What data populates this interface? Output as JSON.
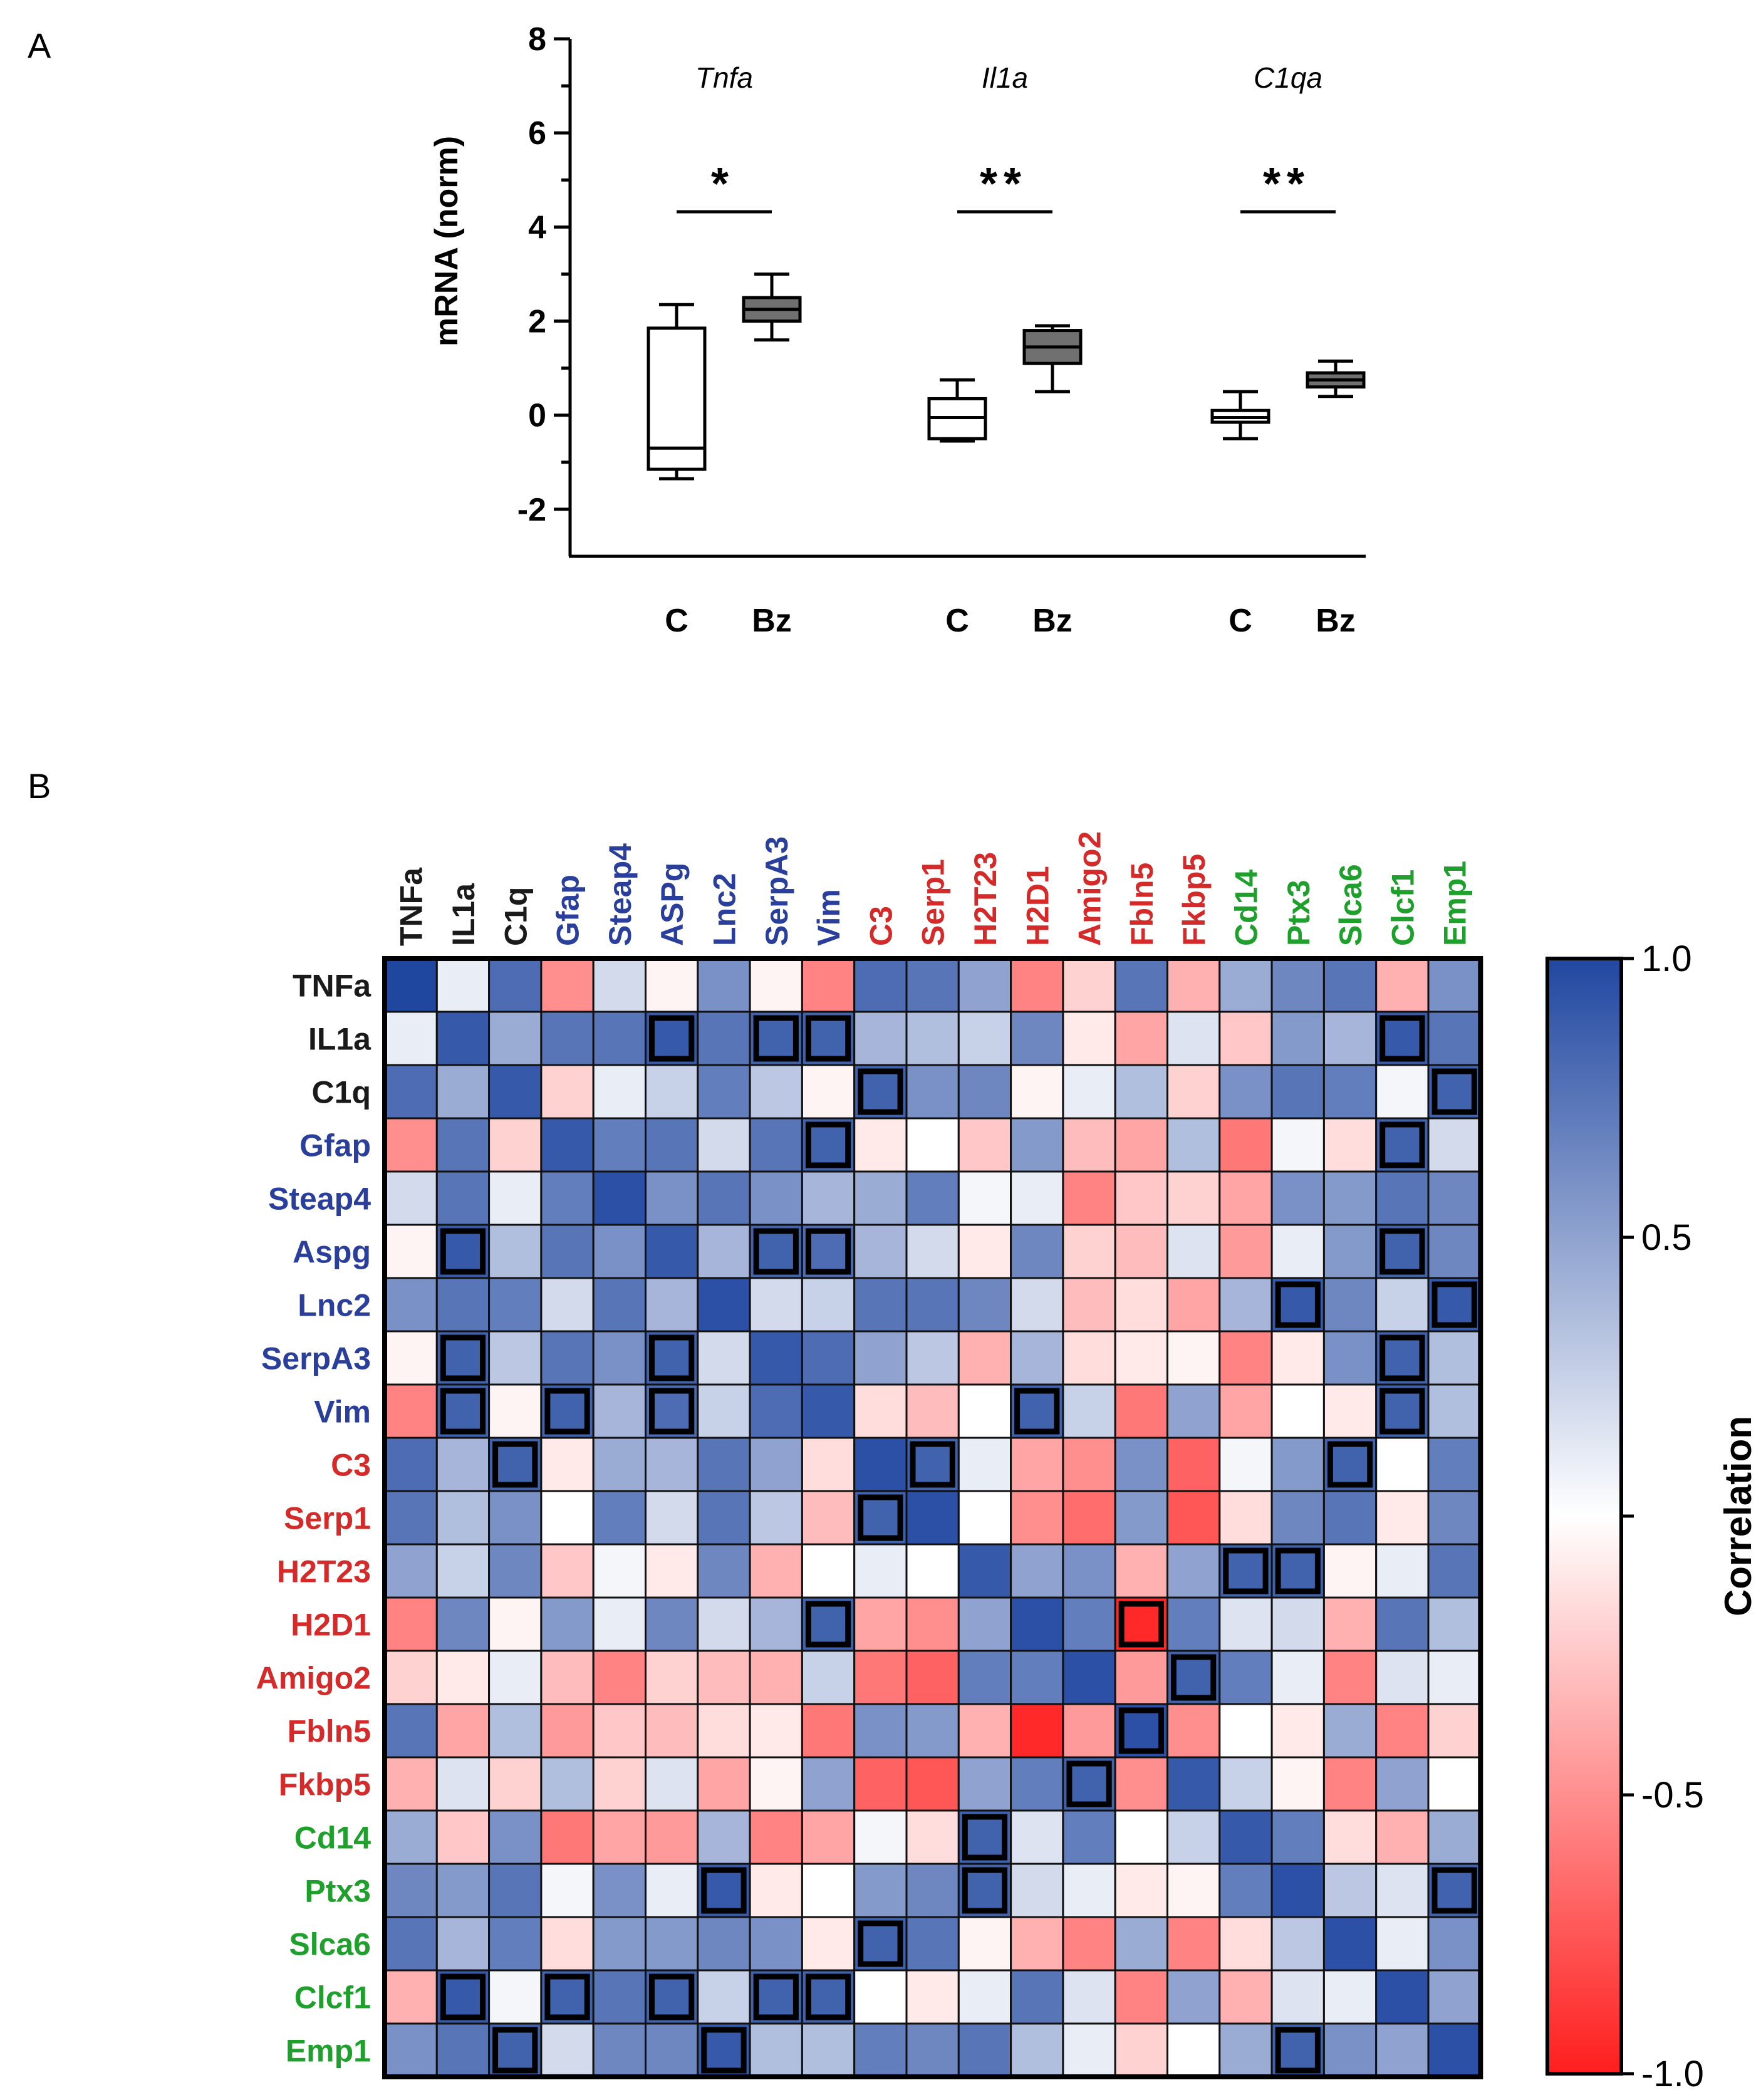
{
  "panels": {
    "a_letter": "A",
    "b_letter": "B"
  },
  "chart_data": [
    {
      "type": "box",
      "panel": "A",
      "ylabel": "mRNA (norm)",
      "ylim": [
        -3,
        8
      ],
      "yticks": [
        -2,
        0,
        2,
        4,
        6,
        8
      ],
      "groups": [
        {
          "gene": "Tnfa",
          "significance": "*",
          "boxes": [
            {
              "label": "C",
              "fill": "#ffffff",
              "min": -1.35,
              "q1": -1.15,
              "median": -0.7,
              "q3": 1.85,
              "max": 2.35
            },
            {
              "label": "Bz",
              "fill": "#707070",
              "min": 1.6,
              "q1": 2.0,
              "median": 2.25,
              "q3": 2.5,
              "max": 3.0
            }
          ]
        },
        {
          "gene": "Il1a",
          "significance": "**",
          "boxes": [
            {
              "label": "C",
              "fill": "#ffffff",
              "min": -0.55,
              "q1": -0.5,
              "median": -0.05,
              "q3": 0.35,
              "max": 0.75
            },
            {
              "label": "Bz",
              "fill": "#707070",
              "min": 0.5,
              "q1": 1.1,
              "median": 1.45,
              "q3": 1.8,
              "max": 1.9
            }
          ]
        },
        {
          "gene": "C1qa",
          "significance": "**",
          "boxes": [
            {
              "label": "C",
              "fill": "#ffffff",
              "min": -0.5,
              "q1": -0.15,
              "median": -0.05,
              "q3": 0.1,
              "max": 0.5
            },
            {
              "label": "Bz",
              "fill": "#707070",
              "min": 0.4,
              "q1": 0.6,
              "median": 0.75,
              "q3": 0.9,
              "max": 1.15
            }
          ]
        }
      ]
    },
    {
      "type": "heatmap",
      "panel": "B",
      "colorbar_label": "Correlation",
      "colorbar_ticks": [
        {
          "value": 1.0,
          "label": "1.0"
        },
        {
          "value": 0.5,
          "label": "0.5"
        },
        {
          "value": 0.0,
          "label": ""
        },
        {
          "value": -0.5,
          "label": "-0.5"
        },
        {
          "value": -1.0,
          "label": "-1.0"
        }
      ],
      "colorscale": {
        "negative": "#ff1e1e",
        "zero": "#ffffff",
        "positive": "#2047a0"
      },
      "group_colors": {
        "black": "#1a1a1a",
        "blue": "#2a3f9b",
        "red": "#d42a2a",
        "green": "#1fa02c"
      },
      "col_labels": [
        {
          "text": "TNFa",
          "group": "black"
        },
        {
          "text": "IL1a",
          "group": "black"
        },
        {
          "text": "C1q",
          "group": "black"
        },
        {
          "text": "Gfap",
          "group": "blue"
        },
        {
          "text": "Steap4",
          "group": "blue"
        },
        {
          "text": "ASPg",
          "group": "blue"
        },
        {
          "text": "Lnc2",
          "group": "blue"
        },
        {
          "text": "SerpA3",
          "group": "blue"
        },
        {
          "text": "Vim",
          "group": "blue"
        },
        {
          "text": "C3",
          "group": "red"
        },
        {
          "text": "Serp1",
          "group": "red"
        },
        {
          "text": "H2T23",
          "group": "red"
        },
        {
          "text": "H2D1",
          "group": "red"
        },
        {
          "text": "Amigo2",
          "group": "red"
        },
        {
          "text": "Fbln5",
          "group": "red"
        },
        {
          "text": "Fkbp5",
          "group": "red"
        },
        {
          "text": "Cd14",
          "group": "green"
        },
        {
          "text": "Ptx3",
          "group": "green"
        },
        {
          "text": "Slca6",
          "group": "green"
        },
        {
          "text": "Clcf1",
          "group": "green"
        },
        {
          "text": "Emp1",
          "group": "green"
        }
      ],
      "row_labels": [
        {
          "text": "TNFa",
          "group": "black"
        },
        {
          "text": "IL1a",
          "group": "black"
        },
        {
          "text": "C1q",
          "group": "black"
        },
        {
          "text": "Gfap",
          "group": "blue"
        },
        {
          "text": "Steap4",
          "group": "blue"
        },
        {
          "text": "Aspg",
          "group": "blue"
        },
        {
          "text": "Lnc2",
          "group": "blue"
        },
        {
          "text": "SerpA3",
          "group": "blue"
        },
        {
          "text": "Vim",
          "group": "blue"
        },
        {
          "text": "C3",
          "group": "red"
        },
        {
          "text": "Serp1",
          "group": "red"
        },
        {
          "text": "H2T23",
          "group": "red"
        },
        {
          "text": "H2D1",
          "group": "red"
        },
        {
          "text": "Amigo2",
          "group": "red"
        },
        {
          "text": "Fbln5",
          "group": "red"
        },
        {
          "text": "Fkbp5",
          "group": "red"
        },
        {
          "text": "Cd14",
          "group": "green"
        },
        {
          "text": "Ptx3",
          "group": "green"
        },
        {
          "text": "Slca6",
          "group": "green"
        },
        {
          "text": "Clcf1",
          "group": "green"
        },
        {
          "text": "Emp1",
          "group": "green"
        }
      ],
      "values": [
        [
          1.0,
          0.1,
          0.8,
          -0.5,
          0.2,
          -0.05,
          0.6,
          -0.05,
          -0.55,
          0.8,
          0.75,
          0.5,
          -0.55,
          -0.2,
          0.75,
          -0.35,
          0.45,
          0.65,
          0.75,
          -0.35,
          0.6
        ],
        [
          0.1,
          0.9,
          0.45,
          0.75,
          0.75,
          0.9,
          0.75,
          0.85,
          0.85,
          0.4,
          0.35,
          0.25,
          0.65,
          -0.1,
          -0.4,
          0.15,
          -0.25,
          0.55,
          0.4,
          0.9,
          0.75
        ],
        [
          0.8,
          0.45,
          0.9,
          -0.2,
          0.1,
          0.25,
          0.7,
          0.3,
          -0.05,
          0.85,
          0.6,
          0.65,
          -0.05,
          0.1,
          0.35,
          -0.2,
          0.6,
          0.75,
          0.7,
          0.05,
          0.85
        ],
        [
          -0.5,
          0.75,
          -0.2,
          0.9,
          0.7,
          0.75,
          0.2,
          0.75,
          0.85,
          -0.1,
          0.0,
          -0.25,
          0.55,
          -0.3,
          -0.4,
          0.35,
          -0.6,
          0.05,
          -0.15,
          0.85,
          0.2
        ],
        [
          0.2,
          0.75,
          0.1,
          0.7,
          0.95,
          0.6,
          0.75,
          0.6,
          0.4,
          0.45,
          0.7,
          0.05,
          0.1,
          -0.55,
          -0.25,
          -0.2,
          -0.4,
          0.6,
          0.55,
          0.75,
          0.65
        ],
        [
          -0.05,
          0.9,
          0.35,
          0.75,
          0.6,
          0.9,
          0.4,
          0.85,
          0.8,
          0.4,
          0.2,
          -0.1,
          0.65,
          -0.2,
          -0.3,
          0.15,
          -0.45,
          0.1,
          0.55,
          0.85,
          0.65
        ],
        [
          0.6,
          0.75,
          0.7,
          0.2,
          0.75,
          0.4,
          0.95,
          0.2,
          0.25,
          0.75,
          0.75,
          0.65,
          0.2,
          -0.3,
          -0.15,
          -0.4,
          0.4,
          0.9,
          0.65,
          0.25,
          0.9
        ],
        [
          -0.05,
          0.85,
          0.3,
          0.75,
          0.6,
          0.85,
          0.2,
          0.9,
          0.8,
          0.5,
          0.3,
          -0.35,
          0.4,
          -0.15,
          -0.1,
          -0.05,
          -0.55,
          -0.1,
          0.6,
          0.85,
          0.35
        ],
        [
          -0.55,
          0.85,
          -0.05,
          0.85,
          0.4,
          0.8,
          0.25,
          0.8,
          0.9,
          -0.15,
          -0.3,
          0.0,
          0.85,
          0.25,
          -0.6,
          0.5,
          -0.4,
          0.0,
          -0.1,
          0.85,
          0.35
        ],
        [
          0.8,
          0.4,
          0.85,
          -0.1,
          0.45,
          0.4,
          0.75,
          0.5,
          -0.15,
          0.95,
          0.85,
          0.1,
          -0.4,
          -0.5,
          0.6,
          -0.7,
          0.05,
          0.55,
          0.85,
          0.0,
          0.7
        ],
        [
          0.75,
          0.35,
          0.6,
          0.0,
          0.7,
          0.2,
          0.75,
          0.3,
          -0.3,
          0.85,
          0.95,
          0.0,
          -0.5,
          -0.65,
          0.55,
          -0.75,
          -0.15,
          0.65,
          0.75,
          -0.1,
          0.65
        ],
        [
          0.5,
          0.25,
          0.65,
          -0.25,
          0.05,
          -0.1,
          0.65,
          -0.35,
          0.0,
          0.1,
          0.0,
          0.9,
          0.5,
          0.6,
          -0.35,
          0.5,
          0.85,
          0.85,
          -0.05,
          0.1,
          0.75
        ],
        [
          -0.55,
          0.65,
          -0.05,
          0.55,
          0.1,
          0.65,
          0.2,
          0.4,
          0.85,
          -0.4,
          -0.5,
          0.5,
          0.95,
          0.7,
          -0.95,
          0.7,
          0.15,
          0.2,
          -0.35,
          0.75,
          0.35
        ],
        [
          -0.2,
          -0.1,
          0.1,
          -0.3,
          -0.55,
          -0.2,
          -0.3,
          -0.35,
          0.25,
          -0.6,
          -0.7,
          0.7,
          0.7,
          0.95,
          -0.45,
          0.85,
          0.7,
          0.1,
          -0.55,
          0.15,
          0.1
        ],
        [
          0.75,
          -0.4,
          0.35,
          -0.45,
          -0.25,
          -0.3,
          -0.15,
          -0.1,
          -0.6,
          0.6,
          0.55,
          -0.35,
          -0.95,
          -0.45,
          0.95,
          -0.5,
          0.0,
          -0.1,
          0.45,
          -0.55,
          -0.2
        ],
        [
          -0.35,
          0.15,
          -0.2,
          0.35,
          -0.2,
          0.15,
          -0.4,
          -0.05,
          0.5,
          -0.7,
          -0.75,
          0.5,
          0.7,
          0.85,
          -0.5,
          0.9,
          0.25,
          -0.05,
          -0.55,
          0.5,
          0.0
        ],
        [
          0.45,
          -0.25,
          0.6,
          -0.6,
          -0.4,
          -0.45,
          0.4,
          -0.55,
          -0.4,
          0.05,
          -0.15,
          0.85,
          0.15,
          0.7,
          0.0,
          0.25,
          0.9,
          0.7,
          -0.15,
          -0.35,
          0.45
        ],
        [
          0.65,
          0.55,
          0.75,
          0.05,
          0.6,
          0.1,
          0.9,
          -0.1,
          0.0,
          0.55,
          0.65,
          0.85,
          0.2,
          0.1,
          -0.1,
          -0.05,
          0.7,
          0.95,
          0.3,
          0.15,
          0.85
        ],
        [
          0.75,
          0.4,
          0.7,
          -0.15,
          0.55,
          0.55,
          0.65,
          0.6,
          -0.1,
          0.85,
          0.75,
          -0.05,
          -0.35,
          -0.55,
          0.45,
          -0.55,
          -0.15,
          0.3,
          0.95,
          0.1,
          0.6
        ],
        [
          -0.35,
          0.9,
          0.05,
          0.85,
          0.75,
          0.85,
          0.25,
          0.85,
          0.85,
          0.0,
          -0.1,
          0.1,
          0.75,
          0.15,
          -0.55,
          0.5,
          -0.35,
          0.15,
          0.1,
          0.95,
          0.5
        ],
        [
          0.6,
          0.75,
          0.85,
          0.2,
          0.65,
          0.65,
          0.9,
          0.35,
          0.35,
          0.7,
          0.65,
          0.75,
          0.35,
          0.1,
          -0.2,
          0.0,
          0.45,
          0.85,
          0.6,
          0.5,
          0.95
        ]
      ],
      "highlighted": [
        [
          1,
          5
        ],
        [
          1,
          7
        ],
        [
          1,
          8
        ],
        [
          1,
          19
        ],
        [
          2,
          9
        ],
        [
          2,
          20
        ],
        [
          3,
          8
        ],
        [
          3,
          19
        ],
        [
          5,
          1
        ],
        [
          5,
          7
        ],
        [
          5,
          8
        ],
        [
          5,
          19
        ],
        [
          6,
          17
        ],
        [
          6,
          20
        ],
        [
          7,
          1
        ],
        [
          7,
          5
        ],
        [
          7,
          19
        ],
        [
          8,
          1
        ],
        [
          8,
          3
        ],
        [
          8,
          5
        ],
        [
          8,
          12
        ],
        [
          8,
          19
        ],
        [
          9,
          2
        ],
        [
          9,
          10
        ],
        [
          9,
          18
        ],
        [
          10,
          9
        ],
        [
          11,
          16
        ],
        [
          11,
          17
        ],
        [
          12,
          8
        ],
        [
          12,
          14
        ],
        [
          13,
          15
        ],
        [
          14,
          14
        ],
        [
          15,
          13
        ],
        [
          16,
          11
        ],
        [
          17,
          6
        ],
        [
          17,
          11
        ],
        [
          17,
          20
        ],
        [
          18,
          9
        ],
        [
          19,
          1
        ],
        [
          19,
          3
        ],
        [
          19,
          5
        ],
        [
          19,
          7
        ],
        [
          19,
          8
        ],
        [
          20,
          2
        ],
        [
          20,
          6
        ],
        [
          20,
          17
        ]
      ]
    }
  ]
}
